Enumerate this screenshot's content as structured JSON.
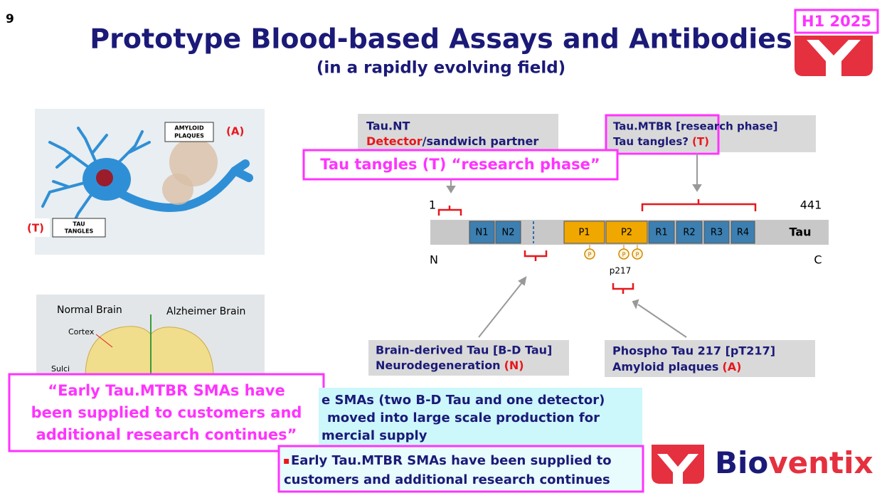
{
  "slide_number": "9",
  "header": {
    "title": "Prototype Blood-based Assays and Antibodies",
    "subtitle": "(in a rapidly evolving field)",
    "badge": "H1 2025"
  },
  "neuron_image": {
    "plaques_label": [
      "AMYLOID",
      "PLAQUES"
    ],
    "plaques_code": "(A)",
    "tangles_code": "(T)",
    "tangles_label": [
      "TAU",
      "TANGLES"
    ]
  },
  "brain_image": {
    "normal": "Normal Brain",
    "alzheimer": "Alzheimer Brain",
    "cortex": "Cortex",
    "sulci": "Sulci"
  },
  "quote": {
    "lines": [
      "“Early Tau.MTBR SMAs have",
      "been supplied to customers and",
      "additional research continues”"
    ]
  },
  "diagram": {
    "tau_nt": {
      "title": "Tau.NT",
      "highlight": "Detector",
      "rest": "/sandwich partner"
    },
    "callout": "Tau tangles (T) “research phase”",
    "tau_mtbr": {
      "title": "Tau.MTBR [research phase]",
      "text": "Tau tangles?",
      "code": "(T)"
    },
    "start": "1",
    "end": "441",
    "n_term": "N",
    "c_term": "C",
    "protein": "Tau",
    "domains": [
      "N1",
      "N2",
      "P1",
      "P2",
      "R1",
      "R2",
      "R3",
      "R4"
    ],
    "phospho": [
      "P",
      "P",
      "P"
    ],
    "site": "p217",
    "bd_tau": {
      "title": "Brain-derived Tau [B-D Tau]",
      "text": "Neurodegeneration",
      "code": "(N)"
    },
    "pt217": {
      "title": "Phospho Tau 217 [pT217]",
      "text": "Amyloid plaques",
      "code": "(A)"
    }
  },
  "status_box": {
    "lines": [
      "e SMAs (two B-D Tau and one detector)",
      "moved into large scale production for",
      "mercial supply"
    ]
  },
  "bullet": {
    "marker": "▪",
    "lines": [
      "Early Tau.MTBR SMAs have been supplied to",
      "customers and additional research continues"
    ]
  },
  "logo": {
    "part1": "Bio",
    "part2": "ventix"
  }
}
